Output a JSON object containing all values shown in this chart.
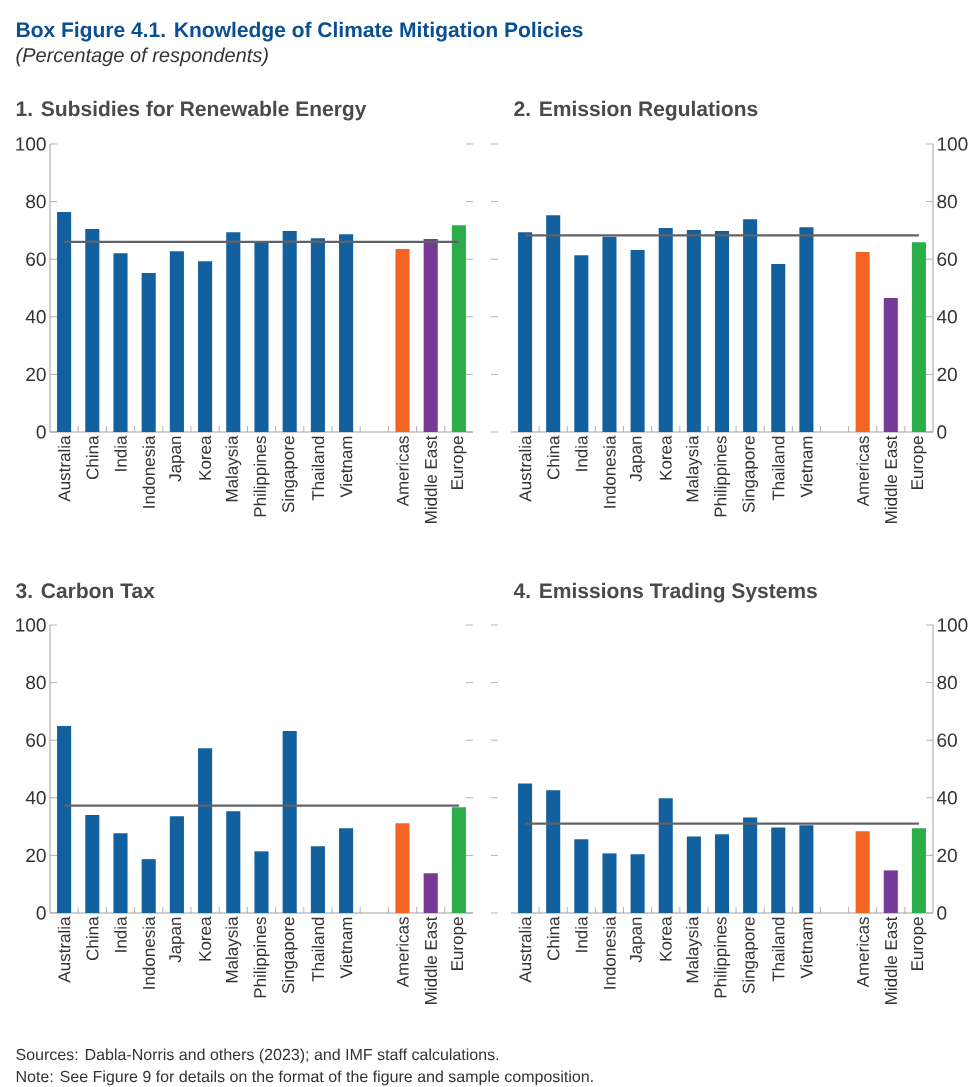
{
  "chart_data": [
    {
      "type": "other",
      "title": "Box Figure 4.1. Knowledge of Climate Mitigation Policies",
      "subtitle": "(Percentage of respondents)",
      "annotations": [
        "Sources: Dabla-Norris and others (2023); and IMF staff calculations.",
        "Note: See Figure 9 for details on the format of the figure and sample composition."
      ]
    },
    {
      "type": "bar",
      "title": "1. Subsidies for Renewable Energy",
      "categories": [
        "Australia",
        "China",
        "India",
        "Indonesia",
        "Japan",
        "Korea",
        "Malaysia",
        "Philippines",
        "Singapore",
        "Thailand",
        "Vietnam",
        null,
        "Americas",
        "Middle East",
        "Europe"
      ],
      "ylim": [
        0,
        100
      ],
      "yticks": [
        0,
        20,
        40,
        60,
        80,
        100
      ],
      "series": [
        {
          "values": [
            76.4,
            70.5,
            62.1,
            55.2,
            62.8,
            59.3,
            69.4,
            66,
            69.8,
            67.3,
            68.7,
            null,
            63.5,
            67.0,
            71.8
          ],
          "colors": [
            "#13609e",
            "#13609e",
            "#13609e",
            "#13609e",
            "#13609e",
            "#13609e",
            "#13609e",
            "#13609e",
            "#13609e",
            "#13609e",
            "#13609e",
            "#13609e",
            "#f26522",
            "#753a96",
            "#2bae4a"
          ]
        }
      ],
      "ref_lines": [
        {
          "axis": "y",
          "value": 66.0,
          "color": "#5f6368"
        }
      ]
    },
    {
      "type": "bar",
      "title": "2. Emission Regulations",
      "categories": [
        "Australia",
        "China",
        "India",
        "Indonesia",
        "Japan",
        "Korea",
        "Malaysia",
        "Philippines",
        "Singapore",
        "Thailand",
        "Vietnam",
        null,
        "Americas",
        "Middle East",
        "Europe"
      ],
      "y2lim": [
        0,
        100
      ],
      "y2ticks": [
        0,
        20,
        40,
        60,
        80,
        100
      ],
      "series": [
        {
          "axis": "y2",
          "values": [
            69.4,
            75.3,
            61.4,
            67.8,
            63.2,
            70.8,
            70.1,
            69.8,
            73.9,
            58.3,
            71.1,
            null,
            62.5,
            46.5,
            65.9
          ],
          "colors": [
            "#13609e",
            "#13609e",
            "#13609e",
            "#13609e",
            "#13609e",
            "#13609e",
            "#13609e",
            "#13609e",
            "#13609e",
            "#13609e",
            "#13609e",
            "#13609e",
            "#f26522",
            "#753a96",
            "#2bae4a"
          ]
        }
      ],
      "ref_lines": [
        {
          "axis": "y2",
          "value": 68.3,
          "color": "#5f6368"
        }
      ]
    },
    {
      "type": "bar",
      "title": "3. Carbon Tax",
      "categories": [
        "Australia",
        "China",
        "India",
        "Indonesia",
        "Japan",
        "Korea",
        "Malaysia",
        "Philippines",
        "Singapore",
        "Thailand",
        "Vietnam",
        null,
        "Americas",
        "Middle East",
        "Europe"
      ],
      "ylim": [
        0,
        100
      ],
      "yticks": [
        0,
        20,
        40,
        60,
        80,
        100
      ],
      "series": [
        {
          "values": [
            64.9,
            34.0,
            27.7,
            18.7,
            33.6,
            57.2,
            35.3,
            21.4,
            63.2,
            23.2,
            29.4,
            null,
            31.2,
            13.8,
            36.7
          ],
          "colors": [
            "#13609e",
            "#13609e",
            "#13609e",
            "#13609e",
            "#13609e",
            "#13609e",
            "#13609e",
            "#13609e",
            "#13609e",
            "#13609e",
            "#13609e",
            "#13609e",
            "#f26522",
            "#753a96",
            "#2bae4a"
          ]
        }
      ],
      "ref_lines": [
        {
          "axis": "y",
          "value": 37.3,
          "color": "#5f6368"
        }
      ]
    },
    {
      "type": "bar",
      "title": "4. Emissions Trading Systems",
      "categories": [
        "Australia",
        "China",
        "India",
        "Indonesia",
        "Japan",
        "Korea",
        "Malaysia",
        "Philippines",
        "Singapore",
        "Thailand",
        "Vietnam",
        null,
        "Americas",
        "Middle East",
        "Europe"
      ],
      "y2lim": [
        0,
        100
      ],
      "y2ticks": [
        0,
        20,
        40,
        60,
        80,
        100
      ],
      "series": [
        {
          "axis": "y2",
          "values": [
            45.0,
            42.6,
            25.6,
            20.7,
            20.4,
            39.8,
            26.6,
            27.3,
            33.2,
            29.7,
            30.5,
            null,
            28.4,
            14.8,
            29.4
          ],
          "colors": [
            "#13609e",
            "#13609e",
            "#13609e",
            "#13609e",
            "#13609e",
            "#13609e",
            "#13609e",
            "#13609e",
            "#13609e",
            "#13609e",
            "#13609e",
            "#13609e",
            "#f26522",
            "#753a96",
            "#2bae4a"
          ]
        }
      ],
      "ref_lines": [
        {
          "axis": "y2",
          "value": 31.0,
          "color": "#5f6368"
        }
      ]
    }
  ]
}
